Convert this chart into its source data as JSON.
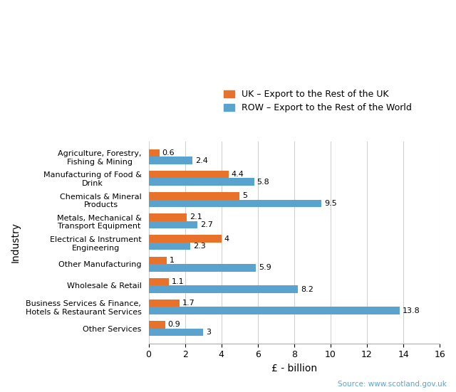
{
  "categories": [
    "Other Services",
    "Business Services & Finance,\nHotels & Restaurant Services",
    "Wholesale & Retail",
    "Other Manufacturing",
    "Electrical & Instrument\nEngineering",
    "Metals, Mechanical &\nTransport Equipment",
    "Chemicals & Mineral\nProducts",
    "Manufacturing of Food &\nDrink",
    "Agriculture, Forestry,\nFishing & Mining"
  ],
  "uk_values": [
    0.9,
    1.7,
    1.1,
    1.0,
    4.0,
    2.1,
    5.0,
    4.4,
    0.6
  ],
  "row_values": [
    3.0,
    13.8,
    8.2,
    5.9,
    2.3,
    2.7,
    9.5,
    5.8,
    2.4
  ],
  "uk_color": "#E8722A",
  "row_color": "#5BA3CF",
  "uk_label": "UK – Export to the Rest of the UK",
  "row_label": "ROW – Export to the Rest of the World",
  "xlabel": "£ - billion",
  "ylabel": "Industry",
  "xlim": [
    0,
    16
  ],
  "xticks": [
    0,
    2,
    4,
    6,
    8,
    10,
    12,
    14,
    16
  ],
  "source_text": "Source: www.scotland.gov.uk",
  "bar_height": 0.35,
  "background_color": "#ffffff",
  "grid_color": "#d0d0d0"
}
